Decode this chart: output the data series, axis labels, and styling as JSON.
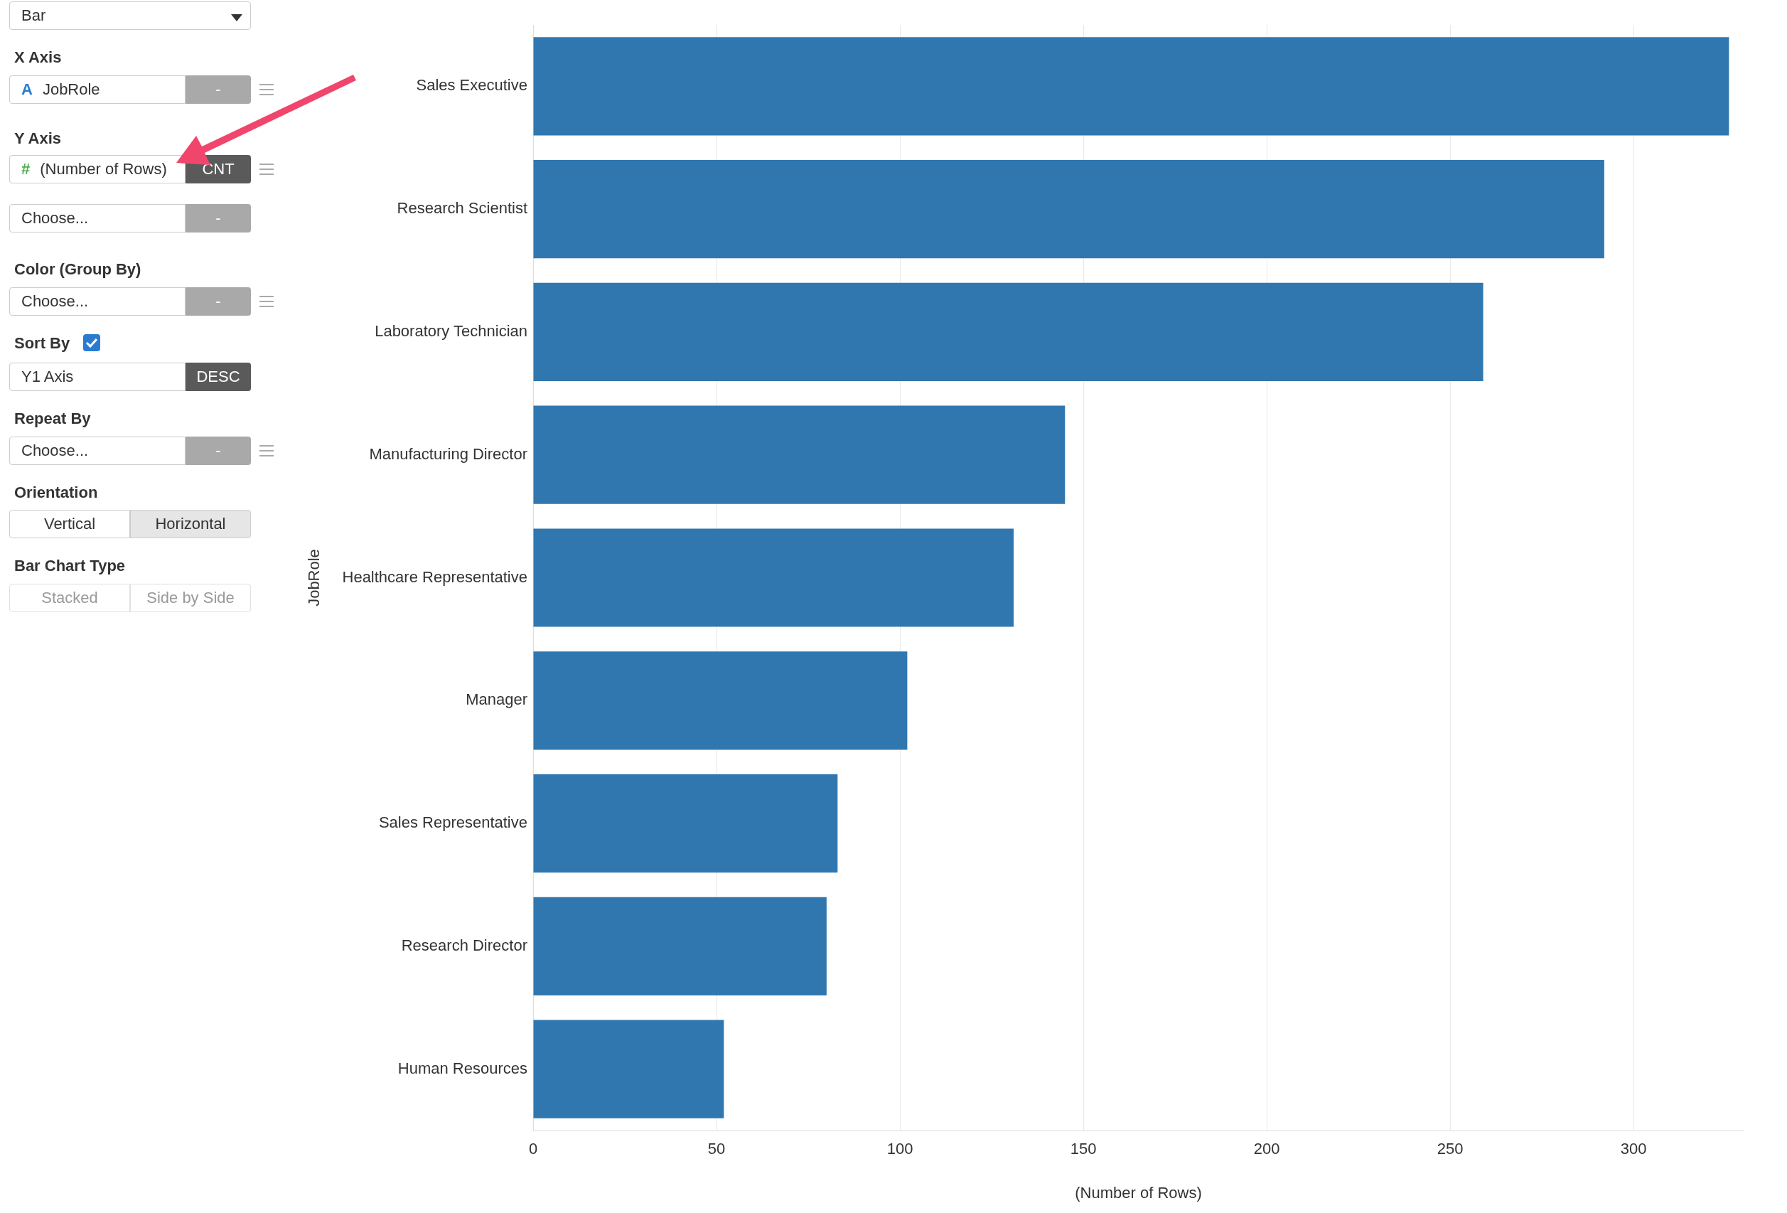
{
  "chart_data": [
    {
      "type": "other",
      "annotations": [
        "Bar",
        "X Axis",
        "A",
        "JobRole",
        "-",
        "Y Axis",
        "#",
        "(Number of Rows)",
        "CNT",
        "Choose...",
        "-",
        "Color (Group By)",
        "Choose...",
        "-",
        "Sort By",
        "Y1 Axis",
        "DESC",
        "Repeat By",
        "Choose...",
        "-",
        "Orientation",
        "Vertical",
        "Horizontal",
        "Bar Chart Type",
        "Stacked",
        "Side by Side"
      ]
    },
    {
      "type": "bar",
      "orientation": "horizontal",
      "categories": [
        "Sales Executive",
        "Research Scientist",
        "Laboratory Technician",
        "Manufacturing Director",
        "Healthcare Representative",
        "Manager",
        "Sales Representative",
        "Research Director",
        "Human Resources"
      ],
      "values": [
        326,
        292,
        259,
        145,
        131,
        102,
        83,
        80,
        52
      ],
      "color": "#3077b0",
      "xlabel": "(Number of Rows)",
      "ylabel": "JobRole",
      "xlim": [
        0,
        330
      ],
      "xticks": [
        0,
        50,
        100,
        150,
        200,
        250,
        300
      ],
      "grid": "x",
      "legend": false
    }
  ]
}
